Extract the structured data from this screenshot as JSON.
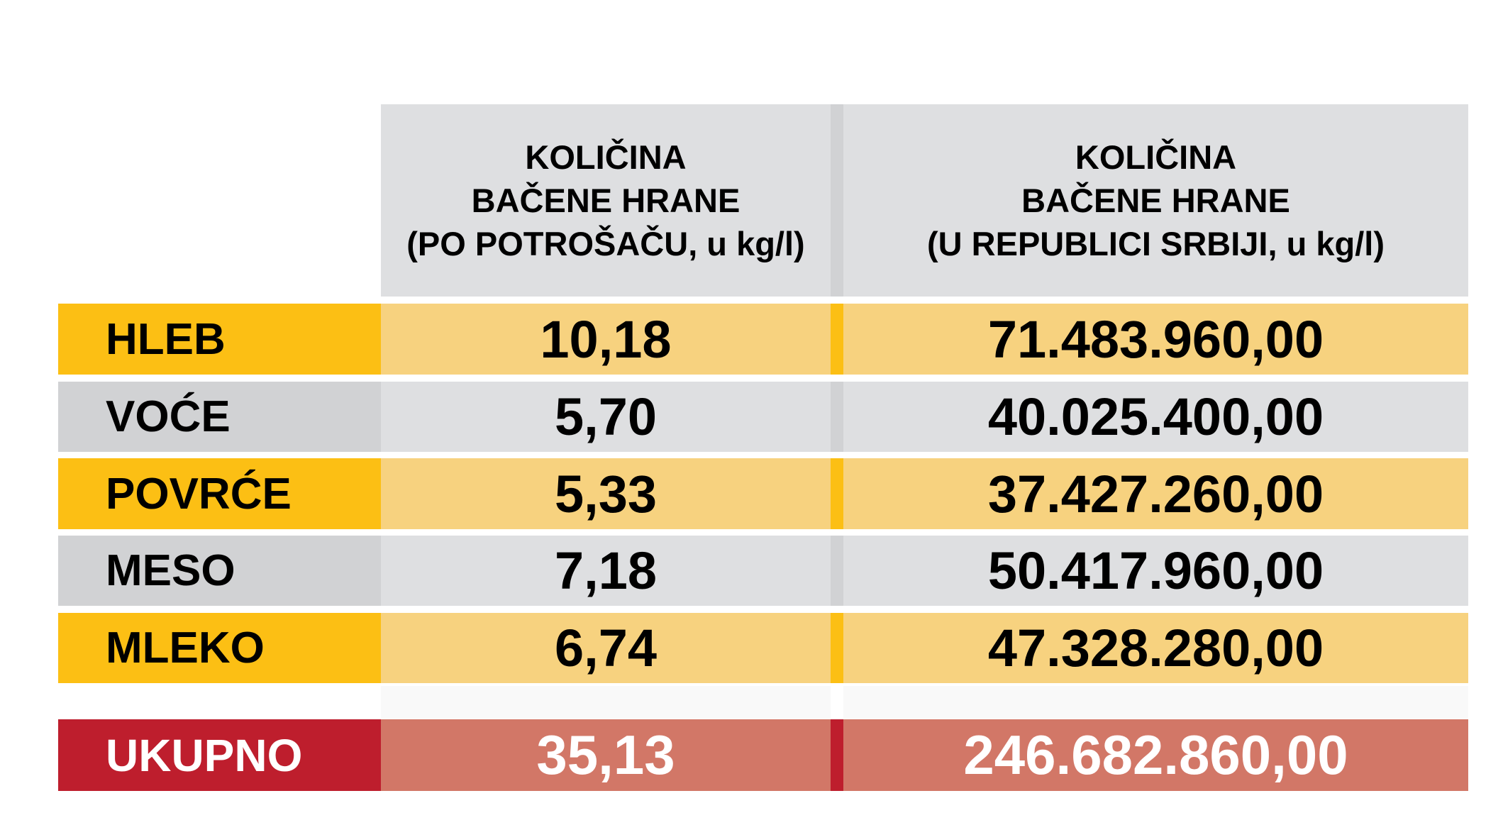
{
  "headers": {
    "col1": [
      "KOLIČINA",
      "BAČENE HRANE",
      "(PO POTROŠAČU, u kg/l)"
    ],
    "col2": [
      "KOLIČINA",
      "BAČENE HRANE",
      "(U REPUBLICI SRBIJI, u kg/l)"
    ]
  },
  "rows": [
    {
      "label": "HLEB",
      "per_consumer": "10,18",
      "total": "71.483.960,00"
    },
    {
      "label": "VOĆE",
      "per_consumer": "5,70",
      "total": "40.025.400,00"
    },
    {
      "label": "POVRĆE",
      "per_consumer": "5,33",
      "total": "37.427.260,00"
    },
    {
      "label": "MESO",
      "per_consumer": "7,18",
      "total": "50.417.960,00"
    },
    {
      "label": "MLEKO",
      "per_consumer": "6,74",
      "total": "47.328.280,00"
    }
  ],
  "total": {
    "label": "UKUPNO",
    "per_consumer": "35,13",
    "total": "246.682.860,00"
  },
  "colors": {
    "yellow": "#FCBF14",
    "light_yellow": "#F7D27F",
    "gray": "#D1D2D4",
    "light_gray": "#DEDFE1",
    "red": "#BE1E2D",
    "salmon": "#D27767"
  }
}
